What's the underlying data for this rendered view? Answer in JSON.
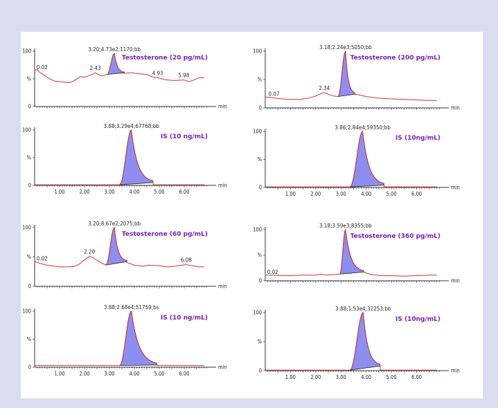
{
  "chart_data": [
    {
      "type": "line",
      "title": "Testosterone (20 pg/mL)",
      "y_ticks": [
        "100",
        "%",
        "0"
      ],
      "x_unit": "min",
      "x_tick_labels": [],
      "xlim": [
        0,
        7
      ],
      "ylim": [
        0,
        100
      ],
      "baseline": [
        [
          0.0,
          65
        ],
        [
          0.1,
          67
        ],
        [
          0.2,
          62
        ],
        [
          0.4,
          56
        ],
        [
          0.6,
          50
        ],
        [
          0.8,
          46
        ],
        [
          1.0,
          45
        ],
        [
          1.2,
          44
        ],
        [
          1.4,
          43
        ],
        [
          1.55,
          46
        ],
        [
          1.7,
          50
        ],
        [
          1.85,
          54
        ],
        [
          2.0,
          53
        ],
        [
          2.2,
          56
        ],
        [
          2.35,
          59
        ],
        [
          2.43,
          61
        ],
        [
          2.55,
          58
        ],
        [
          2.7,
          55
        ],
        [
          2.85,
          57
        ],
        [
          3.0,
          60
        ],
        [
          3.15,
          58
        ],
        [
          3.6,
          60
        ],
        [
          3.9,
          61
        ],
        [
          4.2,
          59
        ],
        [
          4.5,
          58
        ],
        [
          4.7,
          54
        ],
        [
          4.93,
          52
        ],
        [
          5.1,
          50
        ],
        [
          5.3,
          48
        ],
        [
          5.6,
          47
        ],
        [
          5.98,
          48
        ],
        [
          6.2,
          45
        ],
        [
          6.4,
          48
        ],
        [
          6.6,
          52
        ],
        [
          6.8,
          52
        ]
      ],
      "peak": {
        "rt": 3.2,
        "start": 2.9,
        "end": 3.6,
        "height": 96,
        "base_start": 58,
        "base_end": 61,
        "label": "3.20;4.73e2;1170;bb"
      },
      "annotations": [
        {
          "x": 0.02,
          "y": 65,
          "text": "0.02"
        },
        {
          "x": 2.43,
          "y": 61,
          "text": "2.43"
        },
        {
          "x": 4.93,
          "y": 52,
          "text": "4.93"
        },
        {
          "x": 5.98,
          "y": 48,
          "text": "5.98"
        }
      ]
    },
    {
      "type": "line",
      "title": "IS (10 ng/mL)",
      "y_ticks": [
        "100",
        "%",
        "0"
      ],
      "x_unit": "min",
      "x_tick_labels": [
        "1.00",
        "2.00",
        "3.00",
        "4.00",
        "5.00",
        "6.00"
      ],
      "xlim": [
        0,
        7
      ],
      "ylim": [
        0,
        100
      ],
      "baseline": [
        [
          0.0,
          1
        ],
        [
          3.0,
          1
        ],
        [
          6.8,
          1
        ]
      ],
      "peak": {
        "rt": 3.88,
        "start": 3.4,
        "end": 4.75,
        "height": 100,
        "base_start": 1,
        "base_end": 5,
        "label": "3.88;3.29e4;67768;bb"
      },
      "annotations": []
    },
    {
      "type": "line",
      "title": "Testosterone (200 pg/mL)",
      "y_ticks": [
        "100",
        "%",
        "0"
      ],
      "x_unit": "min",
      "x_tick_labels": [],
      "xlim": [
        0,
        7
      ],
      "ylim": [
        0,
        100
      ],
      "baseline": [
        [
          0.0,
          18
        ],
        [
          0.07,
          19
        ],
        [
          0.3,
          18
        ],
        [
          0.6,
          16
        ],
        [
          1.0,
          15
        ],
        [
          1.4,
          15
        ],
        [
          1.7,
          17
        ],
        [
          2.0,
          21
        ],
        [
          2.2,
          25
        ],
        [
          2.34,
          27
        ],
        [
          2.5,
          24
        ],
        [
          2.7,
          21
        ],
        [
          2.9,
          20
        ],
        [
          3.0,
          20
        ],
        [
          3.6,
          24
        ],
        [
          4.0,
          20
        ],
        [
          4.5,
          17
        ],
        [
          5.0,
          16
        ],
        [
          5.5,
          15
        ],
        [
          6.0,
          14
        ],
        [
          6.5,
          13
        ],
        [
          6.8,
          13
        ]
      ],
      "peak": {
        "rt": 3.18,
        "start": 2.88,
        "end": 3.55,
        "height": 100,
        "base_start": 20,
        "base_end": 24,
        "label": "3.18;2.24e3;5050;bb"
      },
      "annotations": [
        {
          "x": 0.07,
          "y": 19,
          "text": "0.07"
        },
        {
          "x": 2.34,
          "y": 27,
          "text": "2.34"
        }
      ]
    },
    {
      "type": "line",
      "title": "IS (10ng/mL)",
      "y_ticks": [
        "100",
        "%",
        "0"
      ],
      "x_unit": "min",
      "x_tick_labels": [
        "1.00",
        "2.00",
        "3.00",
        "4.00",
        "5.00",
        "6.00"
      ],
      "xlim": [
        0,
        7
      ],
      "ylim": [
        0,
        100
      ],
      "baseline": [
        [
          0.0,
          1
        ],
        [
          3.0,
          1
        ],
        [
          6.8,
          1
        ]
      ],
      "peak": {
        "rt": 3.86,
        "start": 3.35,
        "end": 4.7,
        "height": 100,
        "base_start": 1,
        "base_end": 4,
        "label": "3.86;2.84e4;59350;bb"
      },
      "annotations": []
    },
    {
      "type": "line",
      "title": "Testosterone (60 pg/mL)",
      "y_ticks": [
        "100",
        "%",
        "0"
      ],
      "x_unit": "min",
      "x_tick_labels": [],
      "xlim": [
        0,
        7
      ],
      "ylim": [
        0,
        100
      ],
      "baseline": [
        [
          0.0,
          40
        ],
        [
          0.02,
          42
        ],
        [
          0.2,
          39
        ],
        [
          0.5,
          36
        ],
        [
          0.8,
          34
        ],
        [
          1.0,
          33
        ],
        [
          1.2,
          33
        ],
        [
          1.4,
          33
        ],
        [
          1.6,
          34
        ],
        [
          1.8,
          38
        ],
        [
          2.0,
          45
        ],
        [
          2.2,
          51
        ],
        [
          2.35,
          49
        ],
        [
          2.5,
          44
        ],
        [
          2.7,
          39
        ],
        [
          2.9,
          36
        ],
        [
          3.1,
          38
        ],
        [
          3.6,
          42
        ],
        [
          4.0,
          36
        ],
        [
          4.3,
          34
        ],
        [
          4.6,
          36
        ],
        [
          5.0,
          35
        ],
        [
          5.3,
          33
        ],
        [
          5.6,
          34
        ],
        [
          6.08,
          37
        ],
        [
          6.3,
          35
        ],
        [
          6.6,
          33
        ],
        [
          6.8,
          33
        ]
      ],
      "peak": {
        "rt": 3.2,
        "start": 2.85,
        "end": 3.7,
        "height": 100,
        "base_start": 36,
        "base_end": 42,
        "label": "3.20;8.67e2;2075;bb"
      },
      "annotations": [
        {
          "x": 0.02,
          "y": 42,
          "text": "0.02"
        },
        {
          "x": 2.2,
          "y": 51,
          "text": "2.20"
        },
        {
          "x": 6.08,
          "y": 37,
          "text": "6.08"
        }
      ]
    },
    {
      "type": "line",
      "title": "IS (10 ng/mL)",
      "y_ticks": [
        "100",
        "%",
        "0"
      ],
      "x_unit": "min",
      "x_tick_labels": [
        "1.00",
        "2.00",
        "3.00",
        "4.00",
        "5.00",
        "6.00"
      ],
      "xlim": [
        0,
        7
      ],
      "ylim": [
        0,
        100
      ],
      "baseline": [
        [
          0.0,
          3
        ],
        [
          3.0,
          3
        ],
        [
          6.8,
          3
        ]
      ],
      "peak": {
        "rt": 3.88,
        "start": 3.4,
        "end": 4.9,
        "height": 100,
        "base_start": 3,
        "base_end": 4,
        "label": "3.88;2.68e4;51759;bs"
      },
      "annotations": []
    },
    {
      "type": "line",
      "title": "Testosterone (360 pg/mL)",
      "y_ticks": [
        "100",
        "%",
        "0"
      ],
      "x_unit": "min",
      "x_tick_labels": [],
      "xlim": [
        0,
        7
      ],
      "ylim": [
        0,
        100
      ],
      "baseline": [
        [
          0.0,
          10
        ],
        [
          0.02,
          11
        ],
        [
          0.3,
          11
        ],
        [
          0.7,
          10
        ],
        [
          1.0,
          10
        ],
        [
          1.5,
          11
        ],
        [
          2.0,
          11
        ],
        [
          2.2,
          13
        ],
        [
          2.4,
          11
        ],
        [
          2.7,
          12
        ],
        [
          2.95,
          13
        ],
        [
          3.9,
          17
        ],
        [
          4.2,
          12
        ],
        [
          4.6,
          10
        ],
        [
          5.0,
          10
        ],
        [
          5.5,
          9
        ],
        [
          6.0,
          10
        ],
        [
          6.5,
          11
        ],
        [
          6.8,
          11
        ]
      ],
      "peak": {
        "rt": 3.18,
        "start": 2.95,
        "end": 3.9,
        "height": 100,
        "base_start": 13,
        "base_end": 17,
        "label": "3.18;3.59e3;8355;bb"
      },
      "annotations": [
        {
          "x": 0.02,
          "y": 11,
          "text": "0.02"
        }
      ]
    },
    {
      "type": "line",
      "title": "IS (10ng/mL)",
      "y_ticks": [
        "100",
        "%",
        "0"
      ],
      "x_unit": "min",
      "x_tick_labels": [
        "1.00",
        "2.00",
        "3.00",
        "4.00",
        "5.00",
        "6.00"
      ],
      "xlim": [
        0,
        7
      ],
      "ylim": [
        0,
        100
      ],
      "baseline": [
        [
          0.0,
          1
        ],
        [
          3.0,
          1
        ],
        [
          6.8,
          1
        ]
      ],
      "peak": {
        "rt": 3.88,
        "start": 3.35,
        "end": 4.55,
        "height": 100,
        "base_start": 1,
        "base_end": 8,
        "label": "3.88;1.53e4;32253;bb"
      },
      "annotations": []
    }
  ]
}
